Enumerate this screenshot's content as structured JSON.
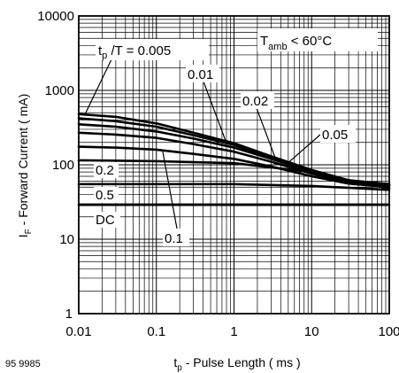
{
  "figure_code": "95 9985",
  "chart_data": {
    "type": "line",
    "x_scale": "log",
    "y_scale": "log",
    "xlim": [
      0.01,
      100
    ],
    "ylim": [
      1,
      10000
    ],
    "grid": true,
    "xlabel": {
      "main": "t",
      "sub": "p",
      "rest": " - Pulse Length ( ms )"
    },
    "ylabel": {
      "main": "I",
      "sub": "F",
      "rest": " - Forward Current ( mA)"
    },
    "x_ticks": [
      {
        "value": 0.01,
        "label": "0.01"
      },
      {
        "value": 0.1,
        "label": "0.1"
      },
      {
        "value": 1,
        "label": "1"
      },
      {
        "value": 10,
        "label": "10"
      },
      {
        "value": 100,
        "label": "100"
      }
    ],
    "y_ticks": [
      {
        "value": 10000,
        "label": "10000"
      },
      {
        "value": 1000,
        "label": "1000"
      },
      {
        "value": 100,
        "label": "100"
      },
      {
        "value": 10,
        "label": "10"
      },
      {
        "value": 1,
        "label": "1"
      }
    ],
    "condition": {
      "main": "T",
      "sub": "amb",
      "rest": " < 60°C"
    },
    "series": [
      {
        "name": "0.005",
        "x": [
          0.01,
          0.03,
          0.1,
          0.3,
          1,
          3,
          10,
          30,
          100
        ],
        "y": [
          480,
          440,
          360,
          270,
          195,
          130,
          85,
          62,
          55
        ]
      },
      {
        "name": "0.01",
        "x": [
          0.01,
          0.03,
          0.1,
          0.3,
          1,
          3,
          10,
          30,
          100
        ],
        "y": [
          420,
          385,
          325,
          250,
          185,
          125,
          82,
          61,
          54
        ]
      },
      {
        "name": "0.02",
        "x": [
          0.01,
          0.03,
          0.1,
          0.3,
          1,
          3,
          10,
          30,
          100
        ],
        "y": [
          350,
          325,
          280,
          225,
          170,
          120,
          80,
          60,
          53
        ]
      },
      {
        "name": "0.05",
        "x": [
          0.01,
          0.03,
          0.1,
          0.3,
          1,
          3,
          10,
          30,
          100
        ],
        "y": [
          270,
          255,
          230,
          190,
          150,
          110,
          76,
          58,
          52
        ]
      },
      {
        "name": "0.1",
        "x": [
          0.01,
          0.03,
          0.1,
          0.3,
          1,
          3,
          10,
          30,
          100
        ],
        "y": [
          175,
          170,
          160,
          140,
          120,
          95,
          70,
          56,
          50
        ]
      },
      {
        "name": "0.2",
        "x": [
          0.01,
          0.1,
          1,
          10,
          30,
          100
        ],
        "y": [
          115,
          112,
          105,
          80,
          62,
          48
        ]
      },
      {
        "name": "0.5",
        "x": [
          0.01,
          0.1,
          1,
          10,
          100
        ],
        "y": [
          55,
          55,
          55,
          52,
          46
        ]
      },
      {
        "name": "DC",
        "x": [
          0.01,
          100
        ],
        "y": [
          29,
          29
        ]
      }
    ],
    "annotations": [
      {
        "id": "tpT",
        "text_main": "t",
        "text_sub": "p",
        "text_rest": " /T = 0.005"
      },
      {
        "id": "a001",
        "text": "0.01"
      },
      {
        "id": "a002",
        "text": "0.02"
      },
      {
        "id": "a005",
        "text": "0.05"
      },
      {
        "id": "a02",
        "text": "0.2"
      },
      {
        "id": "a05",
        "text": "0.5"
      },
      {
        "id": "aDC",
        "text": "DC"
      },
      {
        "id": "a01",
        "text": "0.1"
      }
    ]
  }
}
